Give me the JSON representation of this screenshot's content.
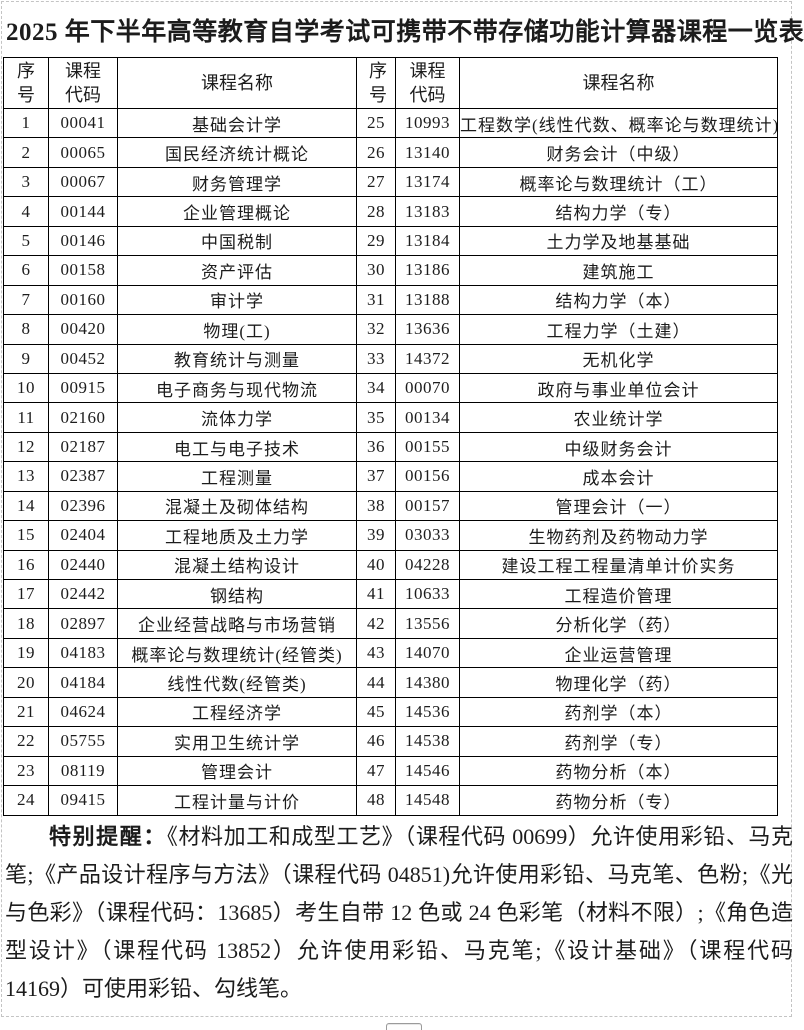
{
  "title": "2025 年下半年高等教育自学考试可携带不带存储功能计算器课程一览表",
  "table": {
    "headers": {
      "seq": "序号",
      "code": "课程代码",
      "name": "课程名称"
    },
    "left_rows": [
      {
        "seq": "1",
        "code": "00041",
        "name": "基础会计学"
      },
      {
        "seq": "2",
        "code": "00065",
        "name": "国民经济统计概论"
      },
      {
        "seq": "3",
        "code": "00067",
        "name": "财务管理学"
      },
      {
        "seq": "4",
        "code": "00144",
        "name": "企业管理概论"
      },
      {
        "seq": "5",
        "code": "00146",
        "name": "中国税制"
      },
      {
        "seq": "6",
        "code": "00158",
        "name": "资产评估"
      },
      {
        "seq": "7",
        "code": "00160",
        "name": "审计学"
      },
      {
        "seq": "8",
        "code": "00420",
        "name": "物理(工)"
      },
      {
        "seq": "9",
        "code": "00452",
        "name": "教育统计与测量"
      },
      {
        "seq": "10",
        "code": "00915",
        "name": "电子商务与现代物流"
      },
      {
        "seq": "11",
        "code": "02160",
        "name": "流体力学"
      },
      {
        "seq": "12",
        "code": "02187",
        "name": "电工与电子技术"
      },
      {
        "seq": "13",
        "code": "02387",
        "name": "工程测量"
      },
      {
        "seq": "14",
        "code": "02396",
        "name": "混凝土及砌体结构"
      },
      {
        "seq": "15",
        "code": "02404",
        "name": "工程地质及土力学"
      },
      {
        "seq": "16",
        "code": "02440",
        "name": "混凝土结构设计"
      },
      {
        "seq": "17",
        "code": "02442",
        "name": "钢结构"
      },
      {
        "seq": "18",
        "code": "02897",
        "name": "企业经营战略与市场营销"
      },
      {
        "seq": "19",
        "code": "04183",
        "name": "概率论与数理统计(经管类)"
      },
      {
        "seq": "20",
        "code": "04184",
        "name": "线性代数(经管类)"
      },
      {
        "seq": "21",
        "code": "04624",
        "name": "工程经济学"
      },
      {
        "seq": "22",
        "code": "05755",
        "name": "实用卫生统计学"
      },
      {
        "seq": "23",
        "code": "08119",
        "name": "管理会计"
      },
      {
        "seq": "24",
        "code": "09415",
        "name": "工程计量与计价"
      }
    ],
    "right_rows": [
      {
        "seq": "25",
        "code": "10993",
        "name": "工程数学(线性代数、概率论与数理统计)"
      },
      {
        "seq": "26",
        "code": "13140",
        "name": "财务会计（中级）"
      },
      {
        "seq": "27",
        "code": "13174",
        "name": "概率论与数理统计（工）"
      },
      {
        "seq": "28",
        "code": "13183",
        "name": "结构力学（专）"
      },
      {
        "seq": "29",
        "code": "13184",
        "name": "土力学及地基基础"
      },
      {
        "seq": "30",
        "code": "13186",
        "name": "建筑施工"
      },
      {
        "seq": "31",
        "code": "13188",
        "name": "结构力学（本）"
      },
      {
        "seq": "32",
        "code": "13636",
        "name": "工程力学（土建）"
      },
      {
        "seq": "33",
        "code": "14372",
        "name": "无机化学"
      },
      {
        "seq": "34",
        "code": "00070",
        "name": "政府与事业单位会计"
      },
      {
        "seq": "35",
        "code": "00134",
        "name": "农业统计学"
      },
      {
        "seq": "36",
        "code": "00155",
        "name": "中级财务会计"
      },
      {
        "seq": "37",
        "code": "00156",
        "name": "成本会计"
      },
      {
        "seq": "38",
        "code": "00157",
        "name": "管理会计（一）"
      },
      {
        "seq": "39",
        "code": "03033",
        "name": "生物药剂及药物动力学"
      },
      {
        "seq": "40",
        "code": "04228",
        "name": "建设工程工程量清单计价实务"
      },
      {
        "seq": "41",
        "code": "10633",
        "name": "工程造价管理"
      },
      {
        "seq": "42",
        "code": "13556",
        "name": "分析化学（药）"
      },
      {
        "seq": "43",
        "code": "14070",
        "name": "企业运营管理"
      },
      {
        "seq": "44",
        "code": "14380",
        "name": "物理化学（药）"
      },
      {
        "seq": "45",
        "code": "14536",
        "name": "药剂学（本）"
      },
      {
        "seq": "46",
        "code": "14538",
        "name": "药剂学（专）"
      },
      {
        "seq": "47",
        "code": "14546",
        "name": "药物分析（本）"
      },
      {
        "seq": "48",
        "code": "14548",
        "name": "药物分析（专）"
      }
    ]
  },
  "notice": {
    "label": "特别提醒：",
    "text": "《材料加工和成型工艺》（课程代码 00699）允许使用彩铅、马克笔;《产品设计程序与方法》（课程代码 04851)允许使用彩铅、马克笔、色粉;《光与色彩》（课程代码：13685）考生自带 12 色或 24 色彩笔（材料不限）;《角色造型设计》（课程代码 13852）允许使用彩铅、马克笔;《设计基础》（课程代码 14169）可使用彩铅、勾线笔。"
  },
  "colors": {
    "table_border": "#000000",
    "text": "#1c1c1c",
    "boundary_dash": "#c4c4c4"
  }
}
